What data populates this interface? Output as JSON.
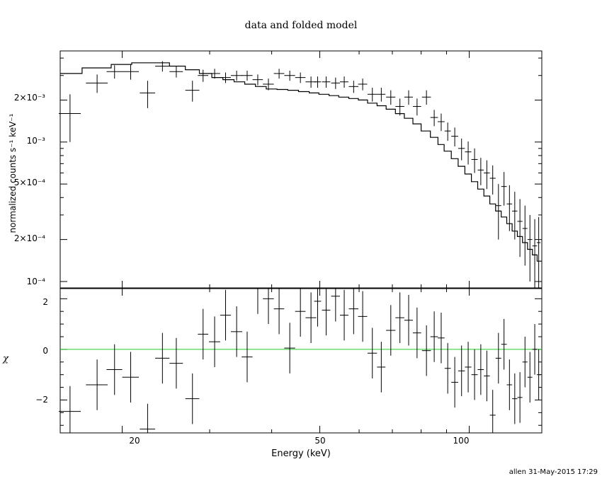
{
  "chart_data": {
    "title": "data and folded model",
    "xlabel": "Energy (keV)",
    "type": "scatter",
    "xscale": "log",
    "xlim": [
      15,
      140
    ],
    "top_panel": {
      "ylabel": "normalized counts s⁻¹ keV⁻¹",
      "yscale": "log",
      "ylim": [
        9e-05,
        0.0045
      ],
      "yticks": [
        {
          "label": "2×10⁻³",
          "value": 0.002
        },
        {
          "label": "10⁻³",
          "value": 0.001
        },
        {
          "label": "5×10⁻⁴",
          "value": 0.0005
        },
        {
          "label": "2×10⁻⁴",
          "value": 0.0002
        },
        {
          "label": "10⁻⁴",
          "value": 0.0001
        }
      ],
      "data_x": [
        15.7,
        17.8,
        19.3,
        20.8,
        22.5,
        24.1,
        25.7,
        27.7,
        29.1,
        30.7,
        32.3,
        34.0,
        35.7,
        37.5,
        39.4,
        41.4,
        43.5,
        45.7,
        48.0,
        49.5,
        51.5,
        53.8,
        56.0,
        58.5,
        61.0,
        63.8,
        66.5,
        69.5,
        72.5,
        75.5,
        78.5,
        82.0,
        85.0,
        87.8,
        90.5,
        93.5,
        96.5,
        99.5,
        102.5,
        105.5,
        108.5,
        111.5,
        114.5,
        117.5,
        120.5,
        123.5,
        126.5,
        129.5,
        132.5,
        135.5,
        138.0
      ],
      "data_xerr": [
        0.8,
        0.9,
        0.7,
        0.8,
        0.8,
        0.8,
        0.8,
        0.9,
        0.7,
        0.8,
        0.8,
        0.9,
        0.9,
        0.9,
        1.0,
        1.0,
        1.1,
        1.1,
        1.2,
        0.8,
        1.0,
        1.1,
        1.1,
        1.3,
        1.3,
        1.4,
        1.3,
        1.5,
        1.5,
        1.5,
        1.5,
        1.7,
        1.5,
        1.4,
        1.3,
        1.5,
        1.5,
        1.5,
        1.5,
        1.5,
        1.5,
        1.5,
        1.5,
        1.5,
        1.5,
        1.5,
        1.5,
        1.5,
        1.5,
        1.5,
        1.2
      ],
      "data_y": [
        0.0016,
        0.00265,
        0.0032,
        0.0032,
        0.00225,
        0.0035,
        0.0032,
        0.00235,
        0.003,
        0.0031,
        0.0029,
        0.003,
        0.003,
        0.0028,
        0.0026,
        0.0031,
        0.003,
        0.0029,
        0.0027,
        0.0027,
        0.0027,
        0.00265,
        0.0027,
        0.0025,
        0.0026,
        0.0022,
        0.0022,
        0.0021,
        0.0018,
        0.0021,
        0.0018,
        0.0021,
        0.0015,
        0.0014,
        0.0012,
        0.0011,
        0.0009,
        0.00085,
        0.00075,
        0.00063,
        0.0006,
        0.00055,
        0.00035,
        0.00048,
        0.00036,
        0.00032,
        0.00027,
        0.00024,
        0.0002,
        0.00018,
        0.00019
      ],
      "data_yerr": [
        0.0006,
        0.0004,
        0.00035,
        0.0004,
        0.0005,
        0.0003,
        0.0003,
        0.0004,
        0.0003,
        0.00025,
        0.00025,
        0.00025,
        0.00025,
        0.00025,
        0.00025,
        0.00025,
        0.00025,
        0.00025,
        0.00025,
        0.00025,
        0.00025,
        0.00025,
        0.00025,
        0.00025,
        0.00025,
        0.00025,
        0.00025,
        0.00025,
        0.00025,
        0.00025,
        0.00025,
        0.00025,
        0.0002,
        0.0002,
        0.00018,
        0.00017,
        0.00016,
        0.00016,
        0.00015,
        0.00014,
        0.00014,
        0.00013,
        0.00015,
        0.00013,
        0.00013,
        0.00012,
        0.00012,
        0.00011,
        0.0001,
        0.0001,
        0.0001
      ],
      "model_edges": [
        15,
        16.6,
        19.0,
        20.9,
        22.9,
        24.9,
        26.8,
        28.6,
        30.3,
        31.9,
        33.6,
        35.3,
        37.1,
        39.0,
        41.0,
        43.1,
        45.3,
        47.6,
        49.8,
        52.2,
        54.6,
        57.2,
        59.8,
        62.4,
        65.2,
        68.0,
        71.0,
        74.0,
        77.0,
        80.0,
        83.5,
        86.5,
        89.0,
        92.0,
        95.0,
        98.0,
        101.0,
        104.0,
        107.0,
        110.0,
        113.0,
        116.0,
        119.0,
        122.0,
        125.0,
        128.0,
        131.0,
        134.0,
        137.0,
        140.0
      ],
      "model_y": [
        0.0031,
        0.0034,
        0.0036,
        0.0037,
        0.0037,
        0.0035,
        0.0033,
        0.0031,
        0.0029,
        0.0028,
        0.0027,
        0.0026,
        0.0025,
        0.0024,
        0.00238,
        0.00235,
        0.0023,
        0.00225,
        0.0022,
        0.00215,
        0.0021,
        0.00205,
        0.002,
        0.0019,
        0.00182,
        0.00172,
        0.0016,
        0.00148,
        0.00135,
        0.0012,
        0.00108,
        0.00096,
        0.00086,
        0.00076,
        0.00067,
        0.00059,
        0.00052,
        0.00046,
        0.00041,
        0.00036,
        0.00032,
        0.00029,
        0.00026,
        0.00023,
        0.00021,
        0.00019,
        0.00017,
        0.000155,
        0.00014
      ]
    },
    "bottom_panel": {
      "ylabel": "χ",
      "ylim": [
        -3.3,
        2.4
      ],
      "yticks": [
        {
          "label": "2",
          "value": 2
        },
        {
          "label": "0",
          "value": 0
        },
        {
          "label": "−2",
          "value": -2
        }
      ],
      "zero_line_color": "#22cc22",
      "residuals": [
        -2.45,
        -1.4,
        -0.8,
        -1.1,
        -3.15,
        -0.35,
        -0.55,
        -1.95,
        0.6,
        0.3,
        1.35,
        0.7,
        -0.3,
        2.4,
        2.0,
        1.6,
        0.05,
        1.5,
        1.25,
        1.9,
        1.55,
        2.1,
        1.35,
        1.6,
        1.3,
        -0.15,
        -0.7,
        0.75,
        1.25,
        1.15,
        0.65,
        -0.05,
        0.5,
        0.45,
        -0.75,
        -1.3,
        -0.85,
        -0.7,
        -1.0,
        -0.8,
        -1.05,
        -2.6,
        -0.35,
        0.2,
        -1.4,
        -1.95,
        -1.9,
        -0.5,
        -1.1,
        0.0,
        -1.0
      ],
      "resid_err": 1.0
    },
    "xticks": [
      {
        "label": "20",
        "value": 20
      },
      {
        "label": "50",
        "value": 50
      },
      {
        "label": "100",
        "value": 100
      }
    ],
    "footer": "allen 31-May-2015 17:29"
  }
}
